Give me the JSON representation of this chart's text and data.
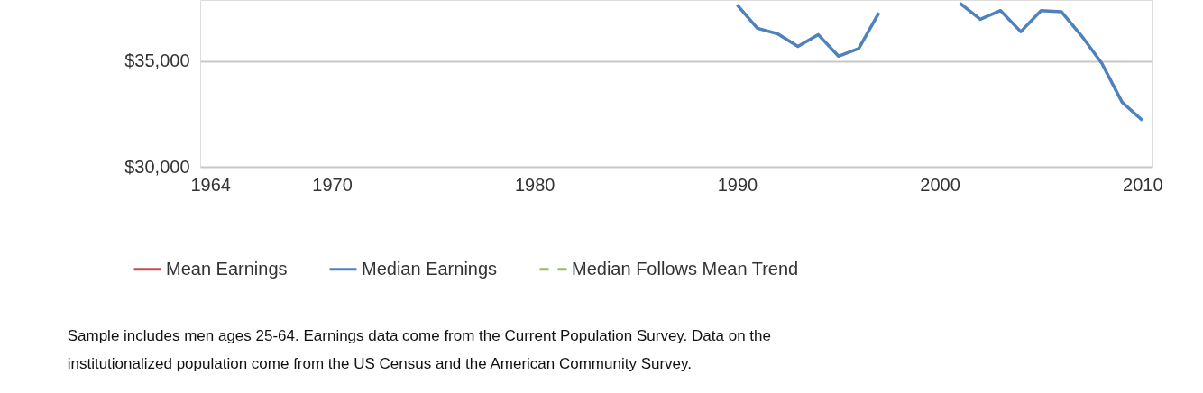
{
  "chart_data": {
    "type": "line",
    "x": [
      1990,
      1991,
      1992,
      1993,
      1994,
      1995,
      1996,
      1997,
      1998,
      1999,
      2000,
      2001,
      2002,
      2003,
      2004,
      2005,
      2006,
      2007,
      2008,
      2009,
      2010
    ],
    "series": [
      {
        "name": "Mean Earnings",
        "color": "#c0504d",
        "values": [
          null,
          null,
          null,
          null,
          null,
          null,
          null,
          null,
          null,
          null,
          null,
          null,
          null,
          null,
          null,
          null,
          null,
          null,
          null,
          null,
          null
        ]
      },
      {
        "name": "Median Earnings",
        "color": "#4f81bd",
        "values": [
          37670,
          36560,
          36300,
          35700,
          36260,
          35240,
          35600,
          37300,
          null,
          null,
          null,
          37750,
          36990,
          37400,
          36400,
          37400,
          37350,
          36200,
          34900,
          33060,
          32200
        ]
      },
      {
        "name": "Median Follows Mean Trend",
        "color": "#9bbb59",
        "line_style": "dashed",
        "values": [
          null,
          null,
          null,
          null,
          null,
          null,
          null,
          null,
          null,
          null,
          null,
          null,
          null,
          null,
          null,
          null,
          null,
          null,
          null,
          null,
          null
        ]
      }
    ],
    "xlim": [
      1963.5,
      2010.5
    ],
    "xticks": [
      1964,
      1970,
      1980,
      1990,
      2000,
      2010
    ],
    "ylim": [
      30000,
      37900
    ],
    "yticks": [
      {
        "value": 30000,
        "label": "$30,000"
      },
      {
        "value": 35000,
        "label": "$35,000"
      }
    ],
    "grid": "y",
    "legend": "bottom",
    "line_style": "solid",
    "marker": "none",
    "annotations": [
      "Sample includes men ages 25-64. Earnings data come from the Current Population Survey. Data on the institutionalized population come from the US Census and the American Community Survey."
    ]
  }
}
